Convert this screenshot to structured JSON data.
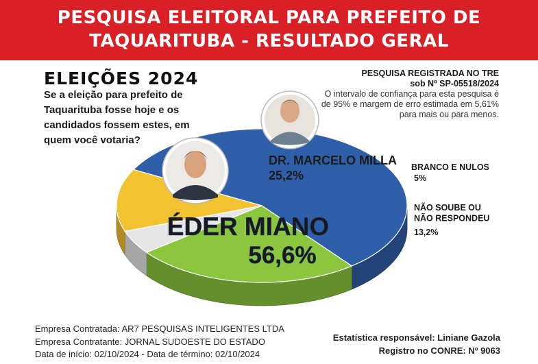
{
  "header": {
    "line1": "PESQUISA ELEITORAL PARA PREFEITO DE",
    "line2": "TAQUARITUBA - RESULTADO GERAL"
  },
  "intro": {
    "heading": "ELEIÇÕES 2024",
    "question": "Se a eleição para prefeito de Taquarituba fosse hoje e os candidados fossem estes, em quem você votaria?"
  },
  "registration": {
    "line1": "PESQUISA REGISTRADA NO TRE",
    "line2": "sob Nº SP-05518/2024",
    "body": "O intervalo de confiança para esta pesquisa é de 95% e margem de erro estimada em 5,61% para mais ou para menos."
  },
  "chart_data": {
    "type": "pie",
    "style": "3d",
    "slices": [
      {
        "name": "ÉDER MIANO",
        "value": 56.6,
        "label": "56,6%",
        "color": "#2f5fa8"
      },
      {
        "name": "DR. MARCELO MILLA",
        "value": 25.2,
        "label": "25,2%",
        "color": "#8cc63f"
      },
      {
        "name": "BRANCO E NULOS",
        "value": 5,
        "label": "5%",
        "color": "#e6e6e6"
      },
      {
        "name": "NÃO SOUBE OU\nNÃO RESPONDEU",
        "value": 13.2,
        "label": "13,2%",
        "color": "#f2c230"
      }
    ]
  },
  "candidates": {
    "photo1": "candidate-photo",
    "photo2": "candidate-photo"
  },
  "footer": {
    "contracted": "Empresa Contratada: AR7 PESQUISAS INTELIGENTES LTDA",
    "contractor": "Empresa Contratante: JORNAL SUDOESTE DO ESTADO",
    "dates": "Data de início: 02/10/2024 - Data de término: 02/10/2024",
    "statistician": "Estatística responsável: Liniane Gazola",
    "conre": "Registro no CONRE: Nº 9063"
  }
}
